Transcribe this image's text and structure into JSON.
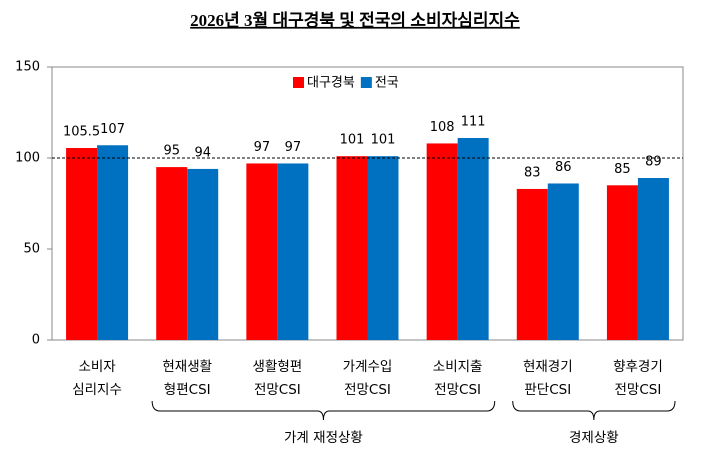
{
  "chart_data": {
    "type": "bar",
    "title": "2026년 3월 대구경북 및 전국의 소비자심리지수",
    "categories": [
      [
        "소비자",
        "심리지수"
      ],
      [
        "현재생활",
        "형편CSI"
      ],
      [
        "생활형편",
        "전망CSI"
      ],
      [
        "가계수입",
        "전망CSI"
      ],
      [
        "소비지출",
        "전망CSI"
      ],
      [
        "현재경기",
        "판단CSI"
      ],
      [
        "향후경기",
        "전망CSI"
      ]
    ],
    "series": [
      {
        "name": "대구경북",
        "color": "#ff0000",
        "values": [
          105.5,
          95,
          97,
          101,
          108,
          83,
          85
        ]
      },
      {
        "name": "전국",
        "color": "#0070c0",
        "values": [
          107,
          94,
          97,
          101,
          111,
          86,
          89
        ]
      }
    ],
    "groups": [
      {
        "label": "가계 재정상황",
        "from": 1,
        "to": 4
      },
      {
        "label": "경제상황",
        "from": 5,
        "to": 6
      }
    ],
    "reference_line": 100,
    "ylim": [
      0,
      150
    ],
    "yticks": [
      0,
      50,
      100,
      150
    ],
    "grid": false,
    "legend": "top"
  }
}
